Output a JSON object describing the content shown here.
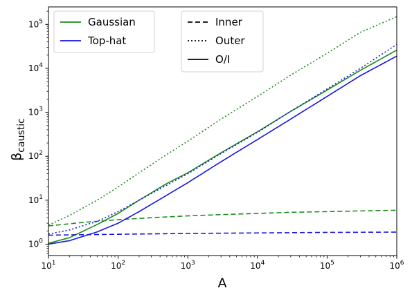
{
  "chart_data": {
    "type": "line",
    "title": "",
    "xlabel": "A",
    "ylabel": "β",
    "ylabel_subscript": "caustic",
    "xscale": "log",
    "yscale": "log",
    "xlim": [
      10,
      1000000
    ],
    "ylim": [
      0.55,
      250000
    ],
    "x_ticks": [
      {
        "value": 10,
        "base": "10",
        "exp": "1"
      },
      {
        "value": 100,
        "base": "10",
        "exp": "2"
      },
      {
        "value": 1000,
        "base": "10",
        "exp": "3"
      },
      {
        "value": 10000,
        "base": "10",
        "exp": "4"
      },
      {
        "value": 100000,
        "base": "10",
        "exp": "5"
      },
      {
        "value": 1000000,
        "base": "10",
        "exp": "6"
      }
    ],
    "y_ticks": [
      {
        "value": 1,
        "base": "10",
        "exp": "0"
      },
      {
        "value": 10,
        "base": "10",
        "exp": "1"
      },
      {
        "value": 100,
        "base": "10",
        "exp": "2"
      },
      {
        "value": 1000,
        "base": "10",
        "exp": "3"
      },
      {
        "value": 10000,
        "base": "10",
        "exp": "4"
      },
      {
        "value": 100000,
        "base": "10",
        "exp": "5"
      }
    ],
    "grid": false,
    "legends": [
      {
        "placement": "top-left",
        "entries": [
          {
            "label": "Gaussian",
            "color": "#1a8a1a",
            "style": "solid"
          },
          {
            "label": "Top-hat",
            "color": "#1515e0",
            "style": "solid"
          }
        ]
      },
      {
        "placement": "top-center",
        "entries": [
          {
            "label": "Inner",
            "color": "#000000",
            "style": "dashed"
          },
          {
            "label": "Outer",
            "color": "#000000",
            "style": "dotted"
          },
          {
            "label": "O/I",
            "color": "#000000",
            "style": "solid"
          }
        ]
      }
    ],
    "series": [
      {
        "profile": "Gaussian",
        "curve": "Outer",
        "color": "#1a8a1a",
        "style": "dotted",
        "x": [
          10,
          20,
          50,
          100,
          200,
          500,
          1000,
          3000,
          10000,
          30000,
          100000,
          300000,
          1000000
        ],
        "y": [
          2.7,
          4.5,
          10,
          20,
          42,
          110,
          220,
          700,
          2300,
          7000,
          22000,
          66000,
          150000
        ]
      },
      {
        "profile": "Gaussian",
        "curve": "O/I",
        "color": "#1a8a1a",
        "style": "solid",
        "x": [
          10,
          20,
          50,
          100,
          200,
          500,
          1000,
          3000,
          10000,
          30000,
          100000,
          300000,
          1000000
        ],
        "y": [
          1.05,
          1.4,
          2.8,
          5,
          10,
          24,
          42,
          120,
          360,
          1050,
          3200,
          9000,
          26000
        ]
      },
      {
        "profile": "Gaussian",
        "curve": "Inner",
        "color": "#1a8a1a",
        "style": "dashed",
        "x": [
          10,
          30,
          100,
          300,
          1000,
          3000,
          10000,
          30000,
          100000,
          300000,
          1000000
        ],
        "y": [
          2.6,
          3.1,
          3.6,
          4.0,
          4.4,
          4.7,
          5.0,
          5.3,
          5.5,
          5.7,
          5.9
        ]
      },
      {
        "profile": "Top-hat",
        "curve": "Outer",
        "color": "#1515e0",
        "style": "dotted",
        "x": [
          10,
          20,
          50,
          100,
          200,
          500,
          1000,
          3000,
          10000,
          30000,
          100000,
          300000,
          1000000
        ],
        "y": [
          1.7,
          2.1,
          3.3,
          5.5,
          10,
          22,
          40,
          115,
          350,
          1050,
          3400,
          10000,
          35000
        ]
      },
      {
        "profile": "Top-hat",
        "curve": "O/I",
        "color": "#1515e0",
        "style": "solid",
        "x": [
          10,
          20,
          50,
          100,
          200,
          500,
          1000,
          3000,
          10000,
          30000,
          100000,
          300000,
          1000000
        ],
        "y": [
          1.0,
          1.2,
          1.9,
          3.0,
          5.5,
          13,
          25,
          75,
          240,
          700,
          2300,
          6800,
          19000
        ]
      },
      {
        "profile": "Top-hat",
        "curve": "Inner",
        "color": "#1515e0",
        "style": "dashed",
        "x": [
          10,
          100,
          1000,
          10000,
          100000,
          1000000
        ],
        "y": [
          1.6,
          1.68,
          1.75,
          1.8,
          1.85,
          1.88
        ]
      }
    ]
  }
}
